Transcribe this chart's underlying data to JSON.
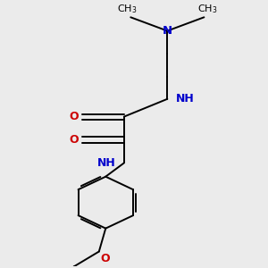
{
  "bg_color": "#ebebeb",
  "bond_color": "#000000",
  "N_color": "#0000cc",
  "O_color": "#cc0000",
  "font_size": 8.5,
  "lw": 1.4,
  "figsize": [
    3.0,
    3.0
  ],
  "dpi": 100,
  "xlim": [
    0.05,
    0.85
  ],
  "ylim": [
    0.02,
    0.98
  ]
}
